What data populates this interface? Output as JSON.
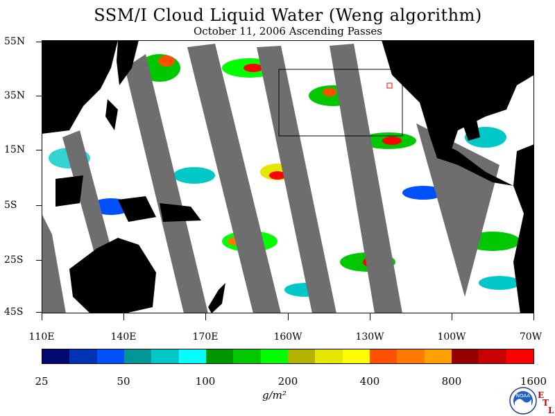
{
  "title": "SSM/I Cloud Liquid Water (Weng algorithm)",
  "subtitle": "October 11, 2006  Ascending Passes",
  "map": {
    "region": "Pacific Ocean 45S-55N, 110E-70W",
    "lat_labels": [
      "55N",
      "35N",
      "15N",
      "5S",
      "25S",
      "45S"
    ],
    "lon_labels": [
      "110E",
      "140E",
      "170E",
      "160W",
      "130W",
      "100W",
      "70W"
    ],
    "colors": {
      "land": "#000000",
      "no_data_swath": "#6e6e6e",
      "ocean_clear": "#ffffff",
      "box": "#000000",
      "red_marker": "#ff0000"
    }
  },
  "colorbar": {
    "colors": [
      "#000a6e",
      "#0032b4",
      "#0050ff",
      "#009696",
      "#00c8c8",
      "#00ffff",
      "#009600",
      "#00c800",
      "#00ff00",
      "#b4b400",
      "#e6e600",
      "#ffff00",
      "#ff5000",
      "#ff7800",
      "#ffa000",
      "#960000",
      "#c80000",
      "#ff0000"
    ],
    "tick_labels": [
      "25",
      "50",
      "100",
      "200",
      "400",
      "800",
      "1600"
    ],
    "units": "g/m²"
  },
  "logo": {
    "text": "NOAA",
    "etl_letters": [
      "E",
      "T",
      "L"
    ]
  }
}
